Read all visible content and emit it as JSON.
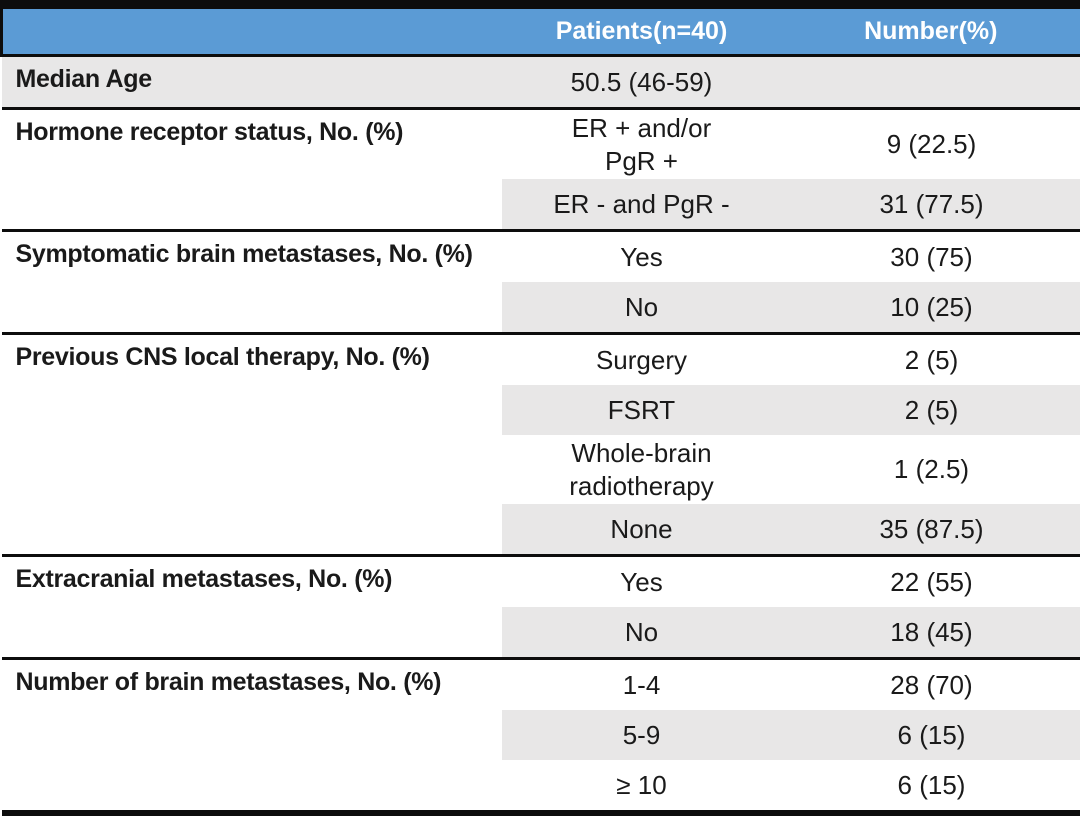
{
  "table": {
    "colors": {
      "header_bg": "#5B9BD5",
      "header_text": "#ffffff",
      "stripe_bg": "#E8E7E7",
      "border": "#0d0d0d",
      "body_text": "#1a1a1a"
    },
    "header": {
      "label": "",
      "patients": "Patients(n=40)",
      "number": "Number(%)"
    },
    "sections": [
      {
        "label": "Median Age",
        "rows": [
          {
            "value": "50.5 (46-59)",
            "number": "",
            "shaded": true,
            "shade_full_row": true
          }
        ]
      },
      {
        "label": "Hormone receptor status, No. (%)",
        "rows": [
          {
            "value": "ER + and/or\nPgR +",
            "number": "9 (22.5)",
            "shaded": false
          },
          {
            "value": "ER - and PgR -",
            "number": "31 (77.5)",
            "shaded": true
          }
        ]
      },
      {
        "label": "Symptomatic brain metastases, No. (%)",
        "rows": [
          {
            "value": "Yes",
            "number": "30 (75)",
            "shaded": false
          },
          {
            "value": "No",
            "number": "10 (25)",
            "shaded": true
          }
        ]
      },
      {
        "label": "Previous CNS local therapy, No. (%)",
        "rows": [
          {
            "value": "Surgery",
            "number": "2 (5)",
            "shaded": false
          },
          {
            "value": "FSRT",
            "number": "2 (5)",
            "shaded": true
          },
          {
            "value": "Whole-brain\nradiotherapy",
            "number": "1 (2.5)",
            "shaded": false
          },
          {
            "value": "None",
            "number": "35 (87.5)",
            "shaded": true
          }
        ]
      },
      {
        "label": "Extracranial metastases, No. (%)",
        "rows": [
          {
            "value": "Yes",
            "number": "22 (55)",
            "shaded": false
          },
          {
            "value": "No",
            "number": "18 (45)",
            "shaded": true
          }
        ]
      },
      {
        "label": "Number of brain metastases, No. (%)",
        "rows": [
          {
            "value": "1-4",
            "number": "28 (70)",
            "shaded": false
          },
          {
            "value": "5-9",
            "number": "6 (15)",
            "shaded": true
          },
          {
            "value": "≥ 10",
            "number": "6 (15)",
            "shaded": false
          }
        ]
      }
    ]
  }
}
